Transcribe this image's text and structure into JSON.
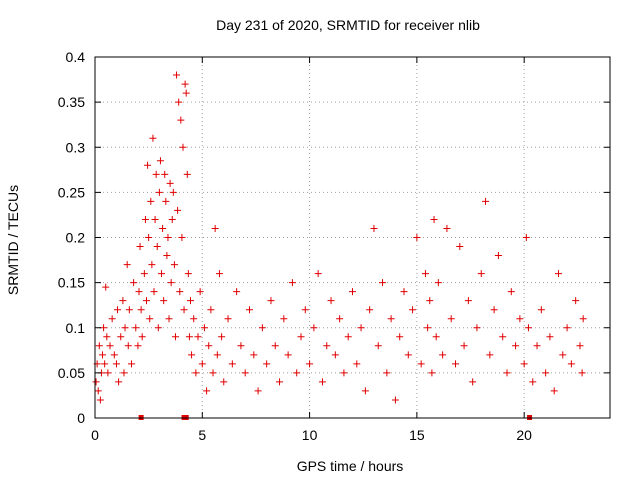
{
  "chart_data": {
    "type": "scatter",
    "title": "Day 231 of 2020, SRMTID for receiver nlib",
    "xlabel": "GPS time / hours",
    "ylabel": "SRMTID / TECUs",
    "xlim": [
      0,
      24
    ],
    "ylim": [
      0,
      0.4
    ],
    "x_ticks": [
      0,
      5,
      10,
      15,
      20
    ],
    "y_ticks": [
      0,
      0.05,
      0.1,
      0.15,
      0.2,
      0.25,
      0.3,
      0.35,
      0.4
    ],
    "x_tick_labels": [
      "0",
      "5",
      "10",
      "15",
      "20"
    ],
    "y_tick_labels": [
      "0",
      "0.05",
      "0.1",
      "0.15",
      "0.2",
      "0.25",
      "0.3",
      "0.35",
      "0.4"
    ],
    "grid": true,
    "marker": "+",
    "color": "#e00000",
    "zero_markers_x": [
      2.15,
      4.15,
      4.25,
      20.25
    ],
    "series": [
      {
        "name": "SRMTID",
        "points": [
          [
            0.05,
            0.04
          ],
          [
            0.1,
            0.06
          ],
          [
            0.15,
            0.03
          ],
          [
            0.2,
            0.08
          ],
          [
            0.25,
            0.02
          ],
          [
            0.3,
            0.05
          ],
          [
            0.35,
            0.07
          ],
          [
            0.4,
            0.1
          ],
          [
            0.45,
            0.06
          ],
          [
            0.5,
            0.145
          ],
          [
            0.55,
            0.09
          ],
          [
            0.6,
            0.05
          ],
          [
            0.7,
            0.08
          ],
          [
            0.8,
            0.11
          ],
          [
            0.9,
            0.07
          ],
          [
            1.0,
            0.06
          ],
          [
            1.05,
            0.12
          ],
          [
            1.1,
            0.04
          ],
          [
            1.2,
            0.09
          ],
          [
            1.3,
            0.13
          ],
          [
            1.35,
            0.05
          ],
          [
            1.4,
            0.1
          ],
          [
            1.5,
            0.17
          ],
          [
            1.55,
            0.08
          ],
          [
            1.6,
            0.12
          ],
          [
            1.7,
            0.06
          ],
          [
            1.8,
            0.15
          ],
          [
            1.9,
            0.1
          ],
          [
            2.0,
            0.08
          ],
          [
            2.05,
            0.14
          ],
          [
            2.1,
            0.19
          ],
          [
            2.15,
            0.12
          ],
          [
            2.2,
            0.09
          ],
          [
            2.3,
            0.16
          ],
          [
            2.35,
            0.22
          ],
          [
            2.4,
            0.13
          ],
          [
            2.45,
            0.28
          ],
          [
            2.5,
            0.2
          ],
          [
            2.55,
            0.11
          ],
          [
            2.6,
            0.24
          ],
          [
            2.65,
            0.17
          ],
          [
            2.7,
            0.31
          ],
          [
            2.75,
            0.14
          ],
          [
            2.8,
            0.22
          ],
          [
            2.85,
            0.27
          ],
          [
            2.9,
            0.19
          ],
          [
            2.95,
            0.1
          ],
          [
            3.0,
            0.25
          ],
          [
            3.05,
            0.285
          ],
          [
            3.1,
            0.16
          ],
          [
            3.15,
            0.21
          ],
          [
            3.2,
            0.13
          ],
          [
            3.25,
            0.27
          ],
          [
            3.3,
            0.24
          ],
          [
            3.35,
            0.18
          ],
          [
            3.4,
            0.2
          ],
          [
            3.45,
            0.11
          ],
          [
            3.5,
            0.26
          ],
          [
            3.55,
            0.15
          ],
          [
            3.6,
            0.22
          ],
          [
            3.65,
            0.25
          ],
          [
            3.7,
            0.17
          ],
          [
            3.75,
            0.09
          ],
          [
            3.8,
            0.38
          ],
          [
            3.85,
            0.23
          ],
          [
            3.9,
            0.35
          ],
          [
            3.95,
            0.14
          ],
          [
            4.0,
            0.33
          ],
          [
            4.05,
            0.2
          ],
          [
            4.1,
            0.3
          ],
          [
            4.15,
            0.12
          ],
          [
            4.2,
            0.37
          ],
          [
            4.25,
            0.36
          ],
          [
            4.3,
            0.27
          ],
          [
            4.35,
            0.16
          ],
          [
            4.4,
            0.09
          ],
          [
            4.45,
            0.13
          ],
          [
            4.5,
            0.07
          ],
          [
            4.6,
            0.11
          ],
          [
            4.7,
            0.05
          ],
          [
            4.8,
            0.09
          ],
          [
            4.9,
            0.14
          ],
          [
            5.0,
            0.06
          ],
          [
            5.1,
            0.1
          ],
          [
            5.2,
            0.03
          ],
          [
            5.3,
            0.08
          ],
          [
            5.4,
            0.12
          ],
          [
            5.5,
            0.05
          ],
          [
            5.6,
            0.21
          ],
          [
            5.7,
            0.07
          ],
          [
            5.8,
            0.16
          ],
          [
            5.9,
            0.09
          ],
          [
            6.0,
            0.04
          ],
          [
            6.2,
            0.11
          ],
          [
            6.4,
            0.06
          ],
          [
            6.6,
            0.14
          ],
          [
            6.8,
            0.08
          ],
          [
            7.0,
            0.05
          ],
          [
            7.2,
            0.12
          ],
          [
            7.4,
            0.07
          ],
          [
            7.6,
            0.03
          ],
          [
            7.8,
            0.1
          ],
          [
            8.0,
            0.06
          ],
          [
            8.2,
            0.13
          ],
          [
            8.4,
            0.08
          ],
          [
            8.6,
            0.04
          ],
          [
            8.8,
            0.11
          ],
          [
            9.0,
            0.07
          ],
          [
            9.2,
            0.15
          ],
          [
            9.4,
            0.05
          ],
          [
            9.6,
            0.09
          ],
          [
            9.8,
            0.12
          ],
          [
            10.0,
            0.06
          ],
          [
            10.2,
            0.1
          ],
          [
            10.4,
            0.16
          ],
          [
            10.6,
            0.04
          ],
          [
            10.8,
            0.08
          ],
          [
            11.0,
            0.13
          ],
          [
            11.2,
            0.07
          ],
          [
            11.4,
            0.11
          ],
          [
            11.6,
            0.05
          ],
          [
            11.8,
            0.09
          ],
          [
            12.0,
            0.14
          ],
          [
            12.2,
            0.06
          ],
          [
            12.4,
            0.1
          ],
          [
            12.6,
            0.03
          ],
          [
            12.8,
            0.12
          ],
          [
            13.0,
            0.21
          ],
          [
            13.2,
            0.08
          ],
          [
            13.4,
            0.15
          ],
          [
            13.6,
            0.05
          ],
          [
            13.8,
            0.11
          ],
          [
            14.0,
            0.02
          ],
          [
            14.2,
            0.09
          ],
          [
            14.4,
            0.14
          ],
          [
            14.6,
            0.07
          ],
          [
            14.8,
            0.12
          ],
          [
            15.0,
            0.2
          ],
          [
            15.2,
            0.06
          ],
          [
            15.4,
            0.16
          ],
          [
            15.5,
            0.1
          ],
          [
            15.6,
            0.13
          ],
          [
            15.7,
            0.05
          ],
          [
            15.8,
            0.22
          ],
          [
            15.9,
            0.09
          ],
          [
            16.0,
            0.15
          ],
          [
            16.2,
            0.07
          ],
          [
            16.4,
            0.21
          ],
          [
            16.6,
            0.11
          ],
          [
            16.8,
            0.06
          ],
          [
            17.0,
            0.19
          ],
          [
            17.2,
            0.08
          ],
          [
            17.4,
            0.13
          ],
          [
            17.6,
            0.04
          ],
          [
            17.8,
            0.1
          ],
          [
            18.0,
            0.16
          ],
          [
            18.2,
            0.24
          ],
          [
            18.4,
            0.07
          ],
          [
            18.6,
            0.12
          ],
          [
            18.8,
            0.18
          ],
          [
            19.0,
            0.09
          ],
          [
            19.2,
            0.05
          ],
          [
            19.4,
            0.14
          ],
          [
            19.6,
            0.08
          ],
          [
            19.8,
            0.11
          ],
          [
            20.0,
            0.06
          ],
          [
            20.1,
            0.2
          ],
          [
            20.2,
            0.1
          ],
          [
            20.4,
            0.04
          ],
          [
            20.6,
            0.08
          ],
          [
            20.8,
            0.12
          ],
          [
            21.0,
            0.05
          ],
          [
            21.2,
            0.09
          ],
          [
            21.4,
            0.03
          ],
          [
            21.6,
            0.16
          ],
          [
            21.8,
            0.07
          ],
          [
            22.0,
            0.1
          ],
          [
            22.2,
            0.06
          ],
          [
            22.4,
            0.13
          ],
          [
            22.6,
            0.08
          ],
          [
            22.7,
            0.05
          ],
          [
            22.75,
            0.11
          ]
        ]
      }
    ]
  }
}
